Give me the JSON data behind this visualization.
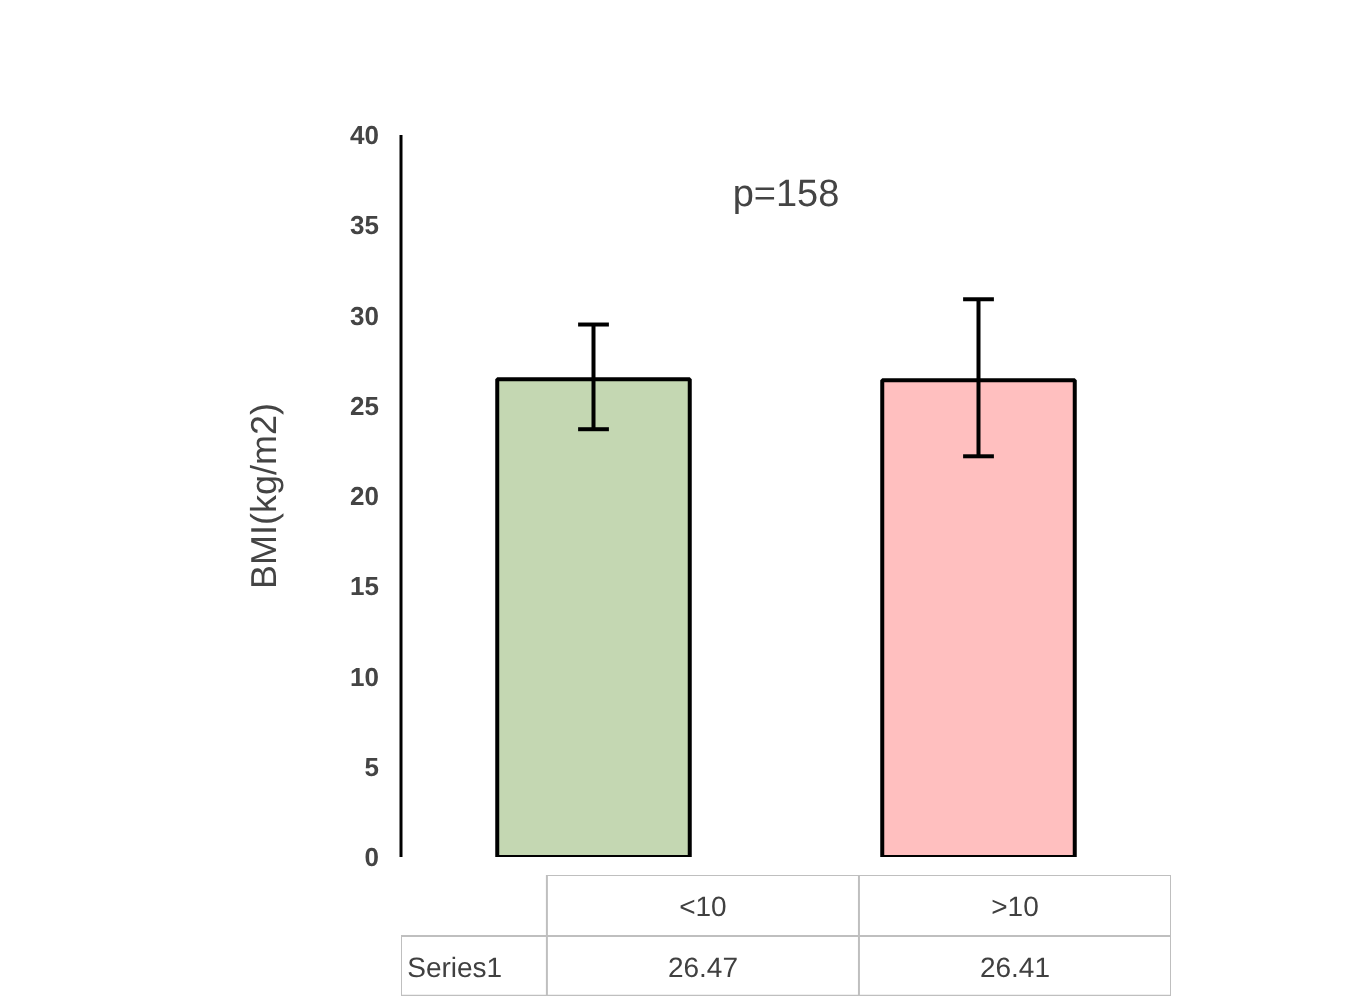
{
  "chart_data": {
    "type": "bar",
    "ylabel": "BMI(kg/m2)",
    "categories": [
      "<10",
      ">10"
    ],
    "series": [
      {
        "name": "Series1",
        "colors": [
          "#c4d7b2",
          "#ffbfbf"
        ],
        "values": [
          26.47,
          26.41
        ],
        "errors": [
          [
            23.7,
            29.5
          ],
          [
            22.2,
            30.9
          ]
        ]
      }
    ],
    "ylim": [
      0,
      40
    ],
    "yticks": [
      0,
      5,
      10,
      15,
      20,
      25,
      30,
      35,
      40
    ],
    "grid": false,
    "data_labels": true,
    "annotations": [
      "p=158"
    ]
  }
}
